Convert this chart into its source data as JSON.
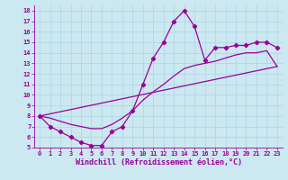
{
  "xlabel": "Windchill (Refroidissement éolien,°C)",
  "bg_color": "#cce8f0",
  "line_color": "#990099",
  "grid_color": "#b0d8e8",
  "ylim": [
    5,
    18.5
  ],
  "xlim": [
    -0.5,
    23.5
  ],
  "yticks": [
    5,
    6,
    7,
    8,
    9,
    10,
    11,
    12,
    13,
    14,
    15,
    16,
    17,
    18
  ],
  "xticks": [
    0,
    1,
    2,
    3,
    4,
    5,
    6,
    7,
    8,
    9,
    10,
    11,
    12,
    13,
    14,
    15,
    16,
    17,
    18,
    19,
    20,
    21,
    22,
    23
  ],
  "curve1_x": [
    0,
    1,
    2,
    3,
    4,
    5,
    6,
    7,
    8,
    9,
    10,
    11,
    12,
    13,
    14,
    15,
    16,
    17,
    18,
    19,
    20,
    21,
    22,
    23
  ],
  "curve1_y": [
    8.0,
    7.0,
    6.5,
    6.0,
    5.5,
    5.2,
    5.2,
    6.5,
    7.0,
    8.5,
    11.0,
    13.5,
    15.0,
    17.0,
    18.0,
    16.5,
    13.3,
    14.5,
    14.5,
    14.7,
    14.7,
    15.0,
    15.0,
    14.5
  ],
  "curve2_x": [
    0,
    1,
    2,
    3,
    4,
    5,
    6,
    7,
    8,
    9,
    10,
    11,
    12,
    13,
    14,
    15,
    16,
    17,
    18,
    19,
    20,
    21,
    22,
    23
  ],
  "curve2_y": [
    8.0,
    7.8,
    7.5,
    7.2,
    7.0,
    6.8,
    6.8,
    7.2,
    7.8,
    8.5,
    9.5,
    10.3,
    11.0,
    11.8,
    12.5,
    12.8,
    13.0,
    13.2,
    13.5,
    13.8,
    14.0,
    14.0,
    14.2,
    12.7
  ],
  "curve3_x": [
    0,
    23
  ],
  "curve3_y": [
    8.0,
    12.7
  ],
  "marker": "D",
  "marker_size": 2.2,
  "linewidth": 0.9,
  "tick_fontsize": 5.0,
  "xlabel_fontsize": 6.0
}
